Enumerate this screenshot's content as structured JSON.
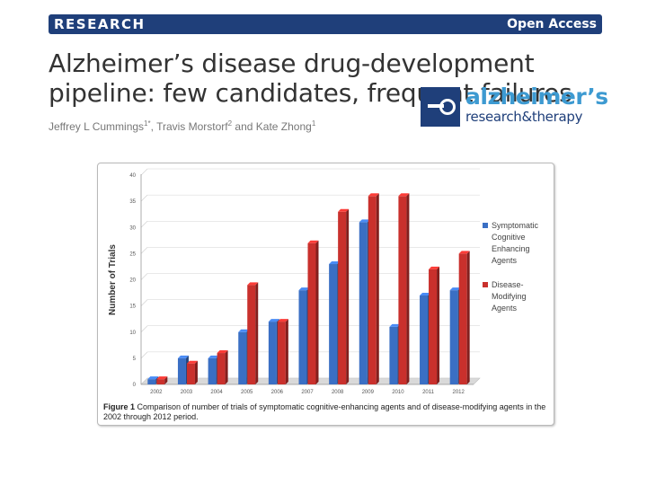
{
  "banner": {
    "left_label": "RESEARCH",
    "right_label": "Open Access"
  },
  "article": {
    "title": "Alzheimer’s disease drug-development pipeline: few candidates, frequent failures",
    "authors": [
      {
        "name": "Jeffrey L Cummings",
        "sup": "1*"
      },
      {
        "name": "Travis Morstorf",
        "sup": "2"
      },
      {
        "name": "Kate Zhong",
        "sup": "1"
      }
    ],
    "author_sep_1": ", ",
    "author_sep_2": " and "
  },
  "journal_logo": {
    "name": "alzheimer’s",
    "subtitle": "research&therapy",
    "brand_color": "#1f3f7a",
    "accent_color": "#3d9ad1"
  },
  "figure": {
    "caption_label": "Figure 1",
    "caption_text": "Comparison of number of trials of symptomatic cognitive-enhancing agents and of disease-modifying agents in the 2002 through 2012 period."
  },
  "chart_data": {
    "type": "bar",
    "categories": [
      "2002",
      "2003",
      "2004",
      "2005",
      "2006",
      "2007",
      "2008",
      "2009",
      "2010",
      "2011",
      "2012"
    ],
    "series": [
      {
        "name": "Symptomatic Cognitive Enhancing Agents",
        "color": "#3a6fc4",
        "values": [
          1,
          5,
          5,
          10,
          12,
          18,
          23,
          31,
          11,
          17,
          18
        ]
      },
      {
        "name": "Disease-Modifying Agents",
        "color": "#c9302c",
        "values": [
          1,
          4,
          6,
          19,
          12,
          27,
          33,
          36,
          36,
          22,
          25
        ]
      }
    ],
    "ylabel": "Number of Trials",
    "xlabel": "",
    "ylim": [
      0,
      40
    ],
    "yticks": [
      0,
      5,
      10,
      15,
      20,
      25,
      30,
      35,
      40
    ],
    "grid": true,
    "legend_position": "right"
  }
}
